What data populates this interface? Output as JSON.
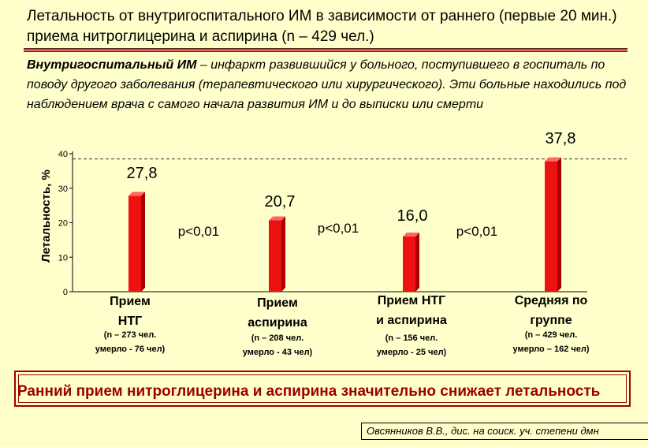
{
  "title": "Летальность от внутригоспитального ИМ в зависимости от раннего (первые 20 мин.) приема нитроглицерина и аспирина (n – 429 чел.)",
  "definition": {
    "term": "Внутригоспитальный ИМ",
    "text": " – инфаркт развившийся у больного, поступившего в госпиталь по поводу другого заболевания (терапевтического или хирургического). Эти больные находились под наблюдением врача с самого начала развития ИМ и до выписки или смерти"
  },
  "conclusion": "Ранний прием нитроглицерина и аспирина значительно снижает летальность",
  "source": "Овсянников В.В., дис. на соиск. уч. степени дмн",
  "colors": {
    "bar": "#ee1111",
    "bar_side": "#aa0000",
    "bar_top": "#ff6666",
    "background": "#ffffcc",
    "accent": "#990000"
  },
  "chart_data": {
    "type": "bar",
    "ylabel": "Летальность, %",
    "ylim": [
      0,
      40
    ],
    "yticks": [
      "0",
      "10",
      "20",
      "30",
      "40"
    ],
    "reference_line": 37.8,
    "categories": [
      "Прием НТГ",
      "Прием аспирина",
      "Прием НТГ и аспирина",
      "Средняя по группе"
    ],
    "category_lines": [
      [
        "Прием",
        "НТГ"
      ],
      [
        "Прием",
        "аспирина"
      ],
      [
        "Прием НТГ",
        "и аспирина"
      ],
      [
        "Средняя по",
        "группе"
      ]
    ],
    "category_notes": [
      [
        "(n – 273 чел.",
        "умерло - 76 чел)"
      ],
      [
        "(n – 208 чел.",
        "умерло - 43 чел)"
      ],
      [
        "(n – 156 чел.",
        "умерло - 25 чел)"
      ],
      [
        "(n – 429 чел.",
        "умерло – 162 чел)"
      ]
    ],
    "values": [
      27.8,
      20.7,
      16.0,
      37.8
    ],
    "value_labels": [
      "27,8",
      "20,7",
      "16,0",
      "37,8"
    ],
    "p_values": [
      "p<0,01",
      "p<0,01",
      "p<0,01"
    ],
    "grid": false,
    "legend": "none"
  }
}
